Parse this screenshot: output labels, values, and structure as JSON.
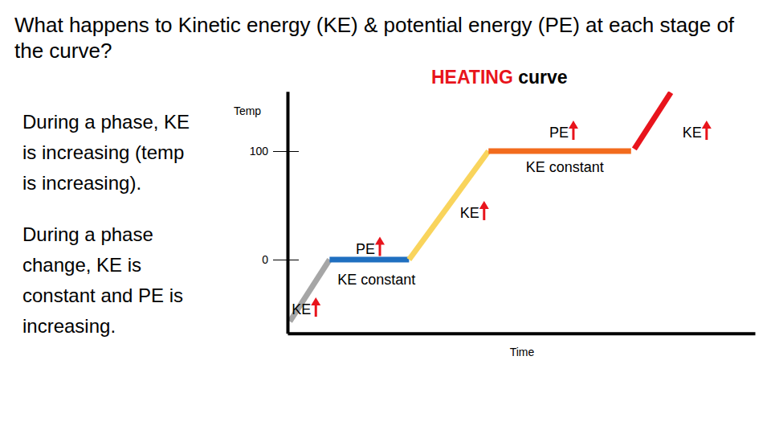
{
  "chart_data": {
    "type": "line",
    "title": "What happens to Kinetic energy (KE) & potential energy (PE) at each stage of the curve?",
    "subtitle": [
      "HEATING",
      "curve"
    ],
    "notes": [
      "During a phase, KE is increasing (temp is increasing).",
      "During a phase change, KE is constant and PE is increasing."
    ],
    "x_label": "Time",
    "y_label": "Temp",
    "xlim": [
      0,
      100
    ],
    "ylim": [
      -68,
      155
    ],
    "yticks": [
      0,
      100
    ],
    "tick_labels": "y",
    "series": [
      {
        "color": "#a6a6a6",
        "x": [
          0.5,
          9
        ],
        "values": [
          -57,
          0
        ]
      },
      {
        "color": "#1f6fc0",
        "x": [
          9,
          26
        ],
        "values": [
          0,
          0
        ]
      },
      {
        "color": "#f9d45c",
        "x": [
          26,
          43
        ],
        "values": [
          0,
          100
        ]
      },
      {
        "color": "#f26b1d",
        "x": [
          43,
          73.5
        ],
        "values": [
          100,
          100
        ]
      },
      {
        "color": "#e8141c",
        "x": [
          74.2,
          82
        ],
        "values": [
          102,
          154
        ]
      }
    ],
    "annotations": [
      {
        "text": "KE",
        "x": 0.9,
        "y": -46,
        "marker": "arrow-up"
      },
      {
        "text": "PE",
        "x": 14.6,
        "y": 10,
        "marker": "arrow-up"
      },
      {
        "text": "KE constant",
        "x": 10.7,
        "y": -18.5
      },
      {
        "text": "KE",
        "x": 36.9,
        "y": 43,
        "marker": "arrow-up"
      },
      {
        "text": "PE",
        "x": 56,
        "y": 117,
        "marker": "arrow-up"
      },
      {
        "text": "KE constant",
        "x": 51,
        "y": 85
      },
      {
        "text": "KE",
        "x": 84.5,
        "y": 117,
        "marker": "arrow-up"
      }
    ]
  }
}
